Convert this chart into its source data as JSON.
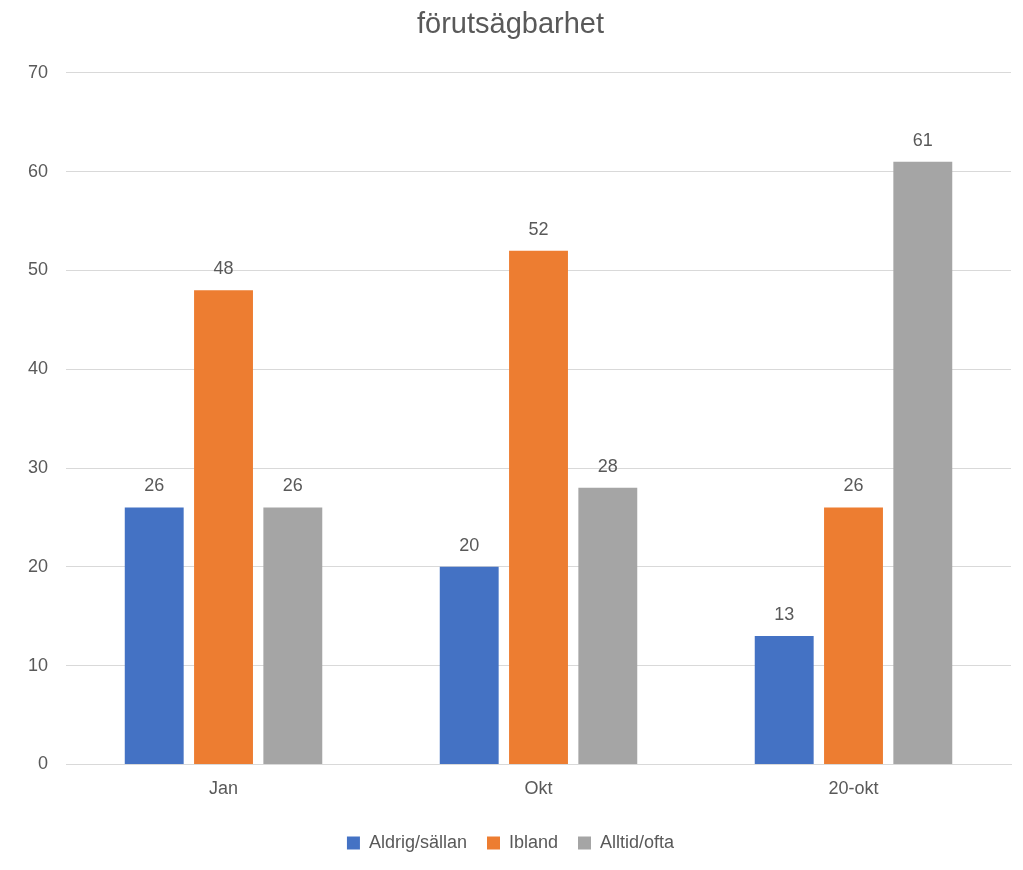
{
  "chart_data": {
    "type": "bar",
    "title": "förutsägbarhet",
    "categories": [
      "Jan",
      "Okt",
      "20-okt"
    ],
    "series": [
      {
        "name": "Aldrig/sällan",
        "color": "#4472c4",
        "values": [
          26,
          20,
          13
        ]
      },
      {
        "name": "Ibland",
        "color": "#ed7d31",
        "values": [
          48,
          52,
          26
        ]
      },
      {
        "name": "Alltid/ofta",
        "color": "#a5a5a5",
        "values": [
          26,
          28,
          61
        ]
      }
    ],
    "ylim": [
      0,
      70
    ],
    "yticks": [
      0,
      10,
      20,
      30,
      40,
      50,
      60,
      70
    ],
    "grid": "y",
    "legend": "bottom",
    "data_labels": true
  }
}
